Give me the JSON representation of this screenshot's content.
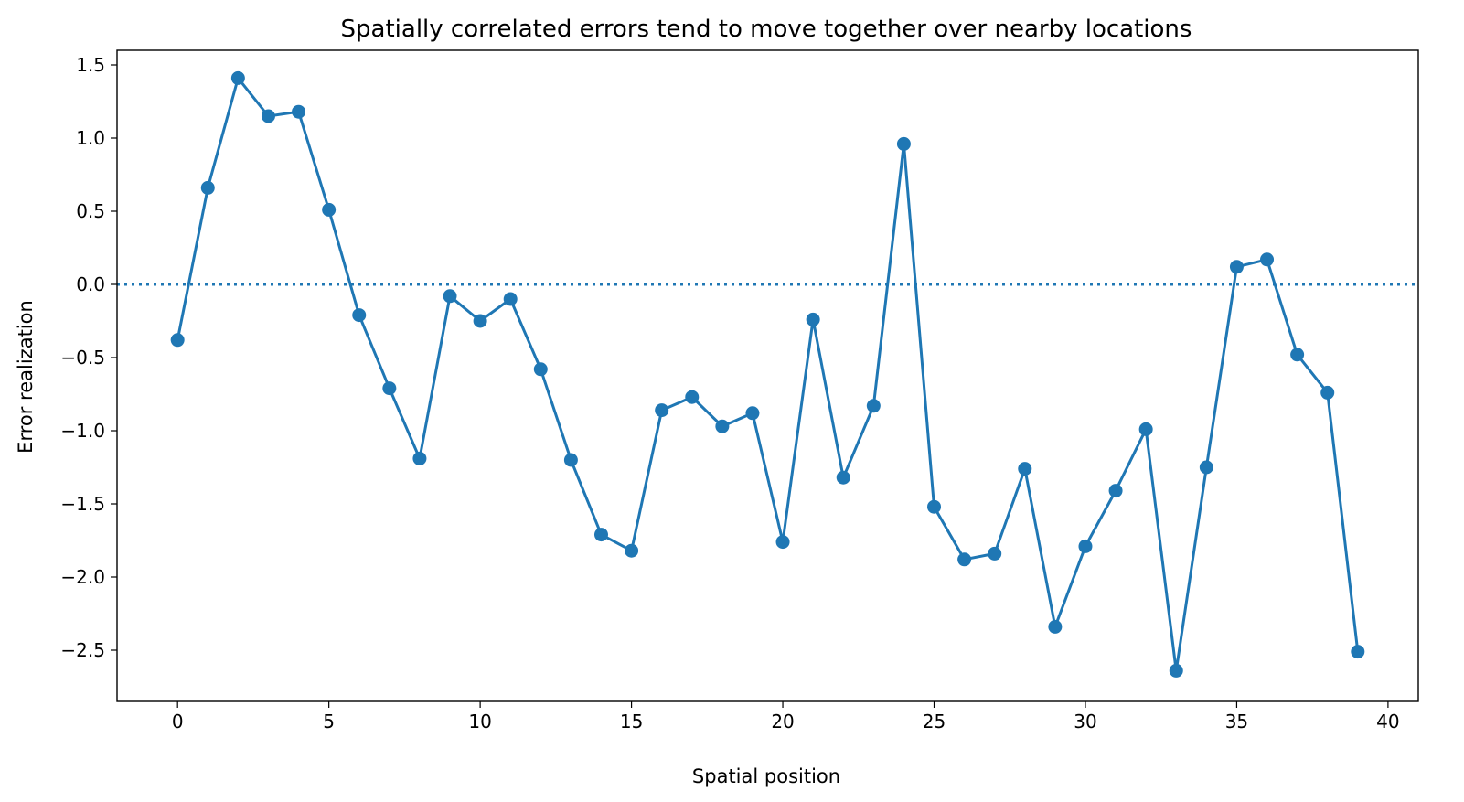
{
  "colors": {
    "series": "#1f77b4",
    "axis": "#000000"
  },
  "chart_data": {
    "type": "line",
    "title": "Spatially correlated errors tend to move together over nearby locations",
    "xlabel": "Spatial position",
    "ylabel": "Error realization",
    "xlim": [
      -2,
      41
    ],
    "ylim": [
      -2.85,
      1.6
    ],
    "xticks": [
      0,
      5,
      10,
      15,
      20,
      25,
      30,
      35,
      40
    ],
    "yticks": [
      1.5,
      1.0,
      0.5,
      0.0,
      -0.5,
      -1.0,
      -1.5,
      -2.0,
      -2.5
    ],
    "ytick_labels": [
      "1.5",
      "1.0",
      "0.5",
      "0.0",
      "−0.5",
      "−1.0",
      "−1.5",
      "−2.0",
      "−2.5"
    ],
    "reference_line": {
      "y": 0,
      "style": "dotted"
    },
    "grid": false,
    "markers": "filled circles",
    "series": [
      {
        "x": [
          0,
          1,
          2,
          3,
          4,
          5,
          6,
          7,
          8,
          9,
          10,
          11,
          12,
          13,
          14,
          15,
          16,
          17,
          18,
          19,
          20,
          21,
          22,
          23,
          24,
          25,
          26,
          27,
          28,
          29,
          30,
          31,
          32,
          33,
          34,
          35,
          36,
          37,
          38,
          39
        ],
        "values": [
          -0.38,
          0.66,
          1.41,
          1.15,
          1.18,
          0.51,
          -0.21,
          -0.71,
          -1.19,
          -0.08,
          -0.25,
          -0.1,
          -0.58,
          -1.2,
          -1.71,
          -1.82,
          -0.86,
          -0.77,
          -0.97,
          -0.88,
          -1.76,
          -0.24,
          -1.32,
          -0.83,
          0.96,
          -1.52,
          -1.88,
          -1.84,
          -1.26,
          -2.34,
          -1.79,
          -1.41,
          -0.99,
          -2.64,
          -1.25,
          0.12,
          0.17,
          -0.48,
          -0.74,
          -2.51
        ]
      }
    ]
  }
}
